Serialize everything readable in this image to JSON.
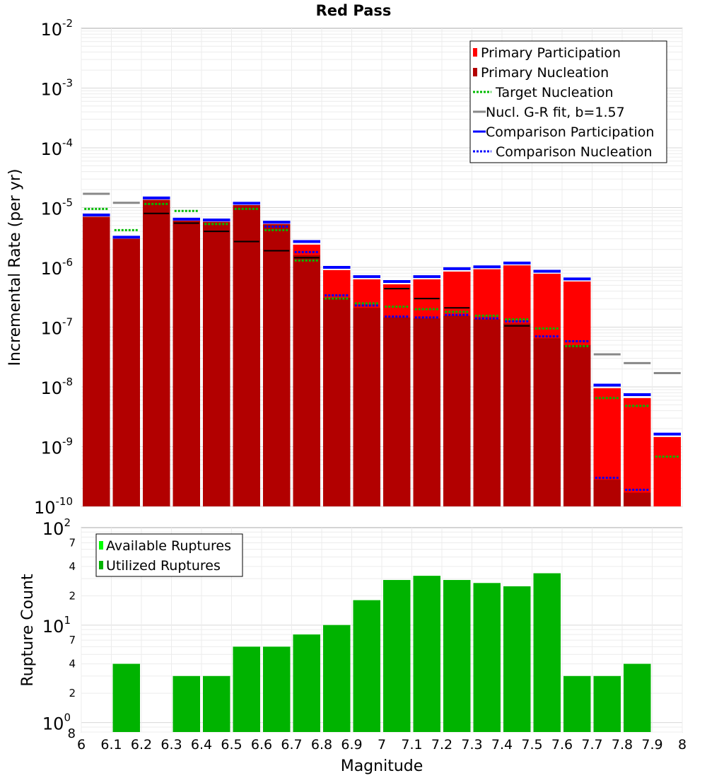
{
  "title": "Red Pass",
  "x_axis": {
    "label": "Magnitude",
    "range": [
      6,
      8
    ],
    "ticks": [
      "6",
      "6.1",
      "6.2",
      "6.3",
      "6.4",
      "6.5",
      "6.6",
      "6.7",
      "6.8",
      "6.9",
      "7",
      "7.1",
      "7.2",
      "7.3",
      "7.4",
      "7.5",
      "7.6",
      "7.7",
      "7.8",
      "7.9",
      "8"
    ]
  },
  "colors": {
    "primary_participation": "#ff0000",
    "primary_nucleation": "#b20000",
    "target_nucleation": "#00bb00",
    "gr_fit": "#888888",
    "comparison": "#0000ff",
    "available": "#00ff00",
    "utilized": "#00b300",
    "nucleation_mark": "#000000"
  },
  "chart_data": [
    {
      "type": "bar",
      "panel": "rates",
      "ylabel": "Incremental Rate (per yr)",
      "y_scale": "log",
      "ylim": [
        1e-10,
        0.01
      ],
      "y_tick_labels": [
        {
          "base": "10",
          "exp": "-10"
        },
        {
          "base": "10",
          "exp": "-9"
        },
        {
          "base": "10",
          "exp": "-8"
        },
        {
          "base": "10",
          "exp": "-7"
        },
        {
          "base": "10",
          "exp": "-6"
        },
        {
          "base": "10",
          "exp": "-5"
        },
        {
          "base": "10",
          "exp": "-4"
        },
        {
          "base": "10",
          "exp": "-3"
        },
        {
          "base": "10",
          "exp": "-2"
        }
      ],
      "legend_position": "top-right",
      "legend": [
        {
          "label": "Primary Participation",
          "symbol": "bar",
          "color": "#ff0000"
        },
        {
          "label": "Primary Nucleation",
          "symbol": "bar",
          "color": "#b20000"
        },
        {
          "label": "Target Nucleation",
          "symbol": "dotted",
          "color": "#00bb00"
        },
        {
          "label": "Nucl. G-R fit, b=1.57",
          "symbol": "line",
          "color": "#888888"
        },
        {
          "label": "Comparison Participation",
          "symbol": "line",
          "color": "#0000ff"
        },
        {
          "label": "Comparison Nucleation",
          "symbol": "dotted",
          "color": "#0000ff"
        }
      ],
      "bins": [
        6.05,
        6.15,
        6.25,
        6.35,
        6.45,
        6.55,
        6.65,
        6.75,
        6.85,
        6.95,
        7.05,
        7.15,
        7.25,
        7.35,
        7.45,
        7.55,
        7.65,
        7.75,
        7.85,
        7.95
      ],
      "series": [
        {
          "name": "Primary Participation",
          "style": "bar",
          "values": [
            7e-06,
            3e-06,
            1.35e-05,
            6e-06,
            5.8e-06,
            1.1e-05,
            5.3e-06,
            2.4e-06,
            9e-07,
            6.3e-07,
            5.2e-07,
            6.3e-07,
            8.5e-07,
            9.3e-07,
            1.08e-06,
            7.8e-07,
            5.8e-07,
            9.5e-09,
            6.5e-09,
            1.45e-09
          ]
        },
        {
          "name": "Primary Nucleation",
          "style": "bar",
          "values": [
            7e-06,
            3e-06,
            1.35e-05,
            6e-06,
            5.8e-06,
            1.1e-05,
            5.3e-06,
            1.6e-06,
            3.1e-07,
            2.1e-07,
            1.45e-07,
            1.4e-07,
            1.55e-07,
            1.35e-07,
            1.15e-07,
            6.5e-08,
            5e-08,
            2.8e-10,
            1.7e-10,
            null
          ]
        },
        {
          "name": "Target Nucleation",
          "style": "dotted",
          "values": [
            9.5e-06,
            4.2e-06,
            1.15e-05,
            8.8e-06,
            5.3e-06,
            9.5e-06,
            4.2e-06,
            1.3e-06,
            3e-07,
            2.5e-07,
            2.2e-07,
            2e-07,
            1.8e-07,
            1.55e-07,
            1.35e-07,
            9.5e-08,
            4.8e-08,
            6.5e-09,
            4.8e-09,
            6.8e-10
          ]
        },
        {
          "name": "Nucl. G-R fit, b=1.57",
          "style": "line",
          "values": [
            1.7e-05,
            1.2e-05,
            null,
            null,
            null,
            null,
            null,
            null,
            null,
            null,
            null,
            null,
            null,
            null,
            null,
            null,
            null,
            3.5e-08,
            2.5e-08,
            1.7e-08
          ]
        },
        {
          "name": "Comparison Participation",
          "style": "line",
          "values": [
            7.5e-06,
            3.2e-06,
            1.45e-05,
            6.4e-06,
            6.2e-06,
            1.18e-05,
            5.7e-06,
            2.7e-06,
            1e-06,
            7e-07,
            5.8e-07,
            7e-07,
            9.5e-07,
            1.02e-06,
            1.18e-06,
            8.6e-07,
            6.4e-07,
            1.07e-08,
            7.4e-09,
            1.62e-09
          ]
        },
        {
          "name": "Comparison Nucleation",
          "style": "dotted",
          "values": [
            null,
            null,
            null,
            null,
            null,
            null,
            4.8e-06,
            1.8e-06,
            3.4e-07,
            2.3e-07,
            1.5e-07,
            1.45e-07,
            1.6e-07,
            1.4e-07,
            1.25e-07,
            7e-08,
            5.8e-08,
            3e-10,
            1.9e-10,
            null
          ]
        }
      ],
      "nucleation_marks": [
        null,
        null,
        8e-06,
        5.5e-06,
        4e-06,
        2.7e-06,
        1.9e-06,
        1.45e-06,
        null,
        null,
        4.4e-07,
        3e-07,
        2.1e-07,
        null,
        1.05e-07,
        null,
        null,
        null,
        null,
        null
      ]
    },
    {
      "type": "bar",
      "panel": "counts",
      "ylabel": "Rupture Count",
      "y_scale": "log",
      "ylim": [
        0.8,
        100
      ],
      "major_tick_labels": [
        {
          "value": 1,
          "base": "10",
          "exp": "0"
        },
        {
          "value": 10,
          "base": "10",
          "exp": "1"
        },
        {
          "value": 100,
          "base": "10",
          "exp": "2"
        }
      ],
      "minor_tick_labels": [
        {
          "value": 0.8,
          "label": "8"
        },
        {
          "value": 2,
          "label": "2"
        },
        {
          "value": 4,
          "label": "4"
        },
        {
          "value": 7,
          "label": "7"
        },
        {
          "value": 20,
          "label": "2"
        },
        {
          "value": 40,
          "label": "4"
        },
        {
          "value": 70,
          "label": "7"
        }
      ],
      "legend_position": "top-left",
      "legend": [
        {
          "label": "Available Ruptures",
          "color": "#00ff00"
        },
        {
          "label": "Utilized Ruptures",
          "color": "#00b300"
        }
      ],
      "bins": [
        6.05,
        6.15,
        6.25,
        6.35,
        6.45,
        6.55,
        6.65,
        6.75,
        6.85,
        6.95,
        7.05,
        7.15,
        7.25,
        7.35,
        7.45,
        7.55,
        7.65,
        7.75,
        7.85,
        7.95
      ],
      "series": [
        {
          "name": "Available Ruptures",
          "values": [
            null,
            4,
            null,
            3,
            3,
            6,
            6,
            8,
            10,
            18,
            29,
            32,
            29,
            27,
            25,
            34,
            3,
            3,
            4,
            null
          ]
        },
        {
          "name": "Utilized Ruptures",
          "values": [
            null,
            4,
            null,
            3,
            3,
            6,
            6,
            8,
            10,
            18,
            29,
            32,
            29,
            27,
            25,
            34,
            3,
            3,
            4,
            null
          ]
        }
      ]
    }
  ]
}
